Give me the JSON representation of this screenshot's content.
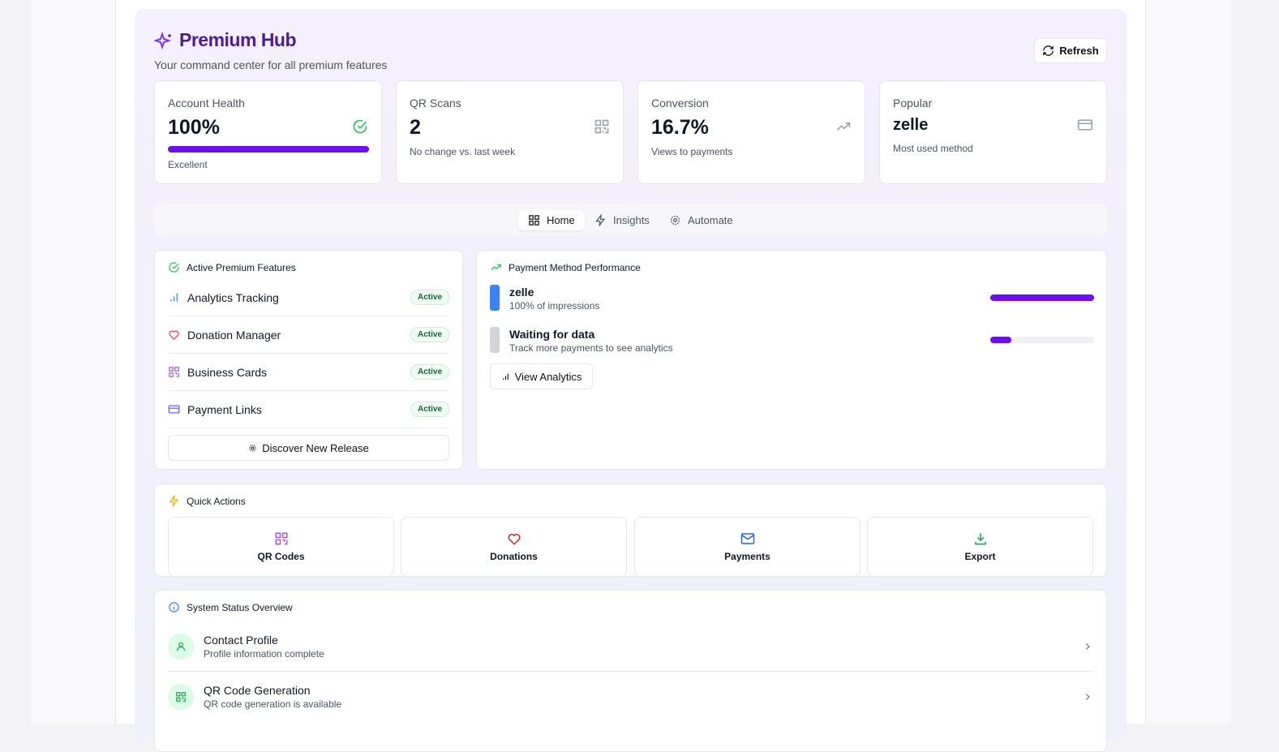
{
  "header": {
    "title": "Premium Hub",
    "subtitle": "Your command center for all premium features",
    "refresh": "Refresh"
  },
  "stats": [
    {
      "label": "Account Health",
      "value": "100%",
      "note": "Excellent",
      "progress": 100
    },
    {
      "label": "QR Scans",
      "value": "2",
      "note": "No change vs. last week"
    },
    {
      "label": "Conversion",
      "value": "16.7%",
      "note": "Views to payments"
    },
    {
      "label": "Popular",
      "value": "zelle",
      "note": "Most used method"
    }
  ],
  "tabs": [
    "Home",
    "Insights",
    "Automate"
  ],
  "features": {
    "title": "Active Premium Features",
    "items": [
      {
        "name": "Analytics Tracking",
        "status": "Active"
      },
      {
        "name": "Donation Manager",
        "status": "Active"
      },
      {
        "name": "Business Cards",
        "status": "Active"
      },
      {
        "name": "Payment Links",
        "status": "Active"
      }
    ],
    "button": "Discover New Release"
  },
  "payment": {
    "title": "Payment Method Performance",
    "methods": [
      {
        "name": "zelle",
        "detail": "100% of impressions",
        "bar": 100
      },
      {
        "name": "Waiting for data",
        "detail": "Track more payments to see analytics",
        "bar": 20
      }
    ],
    "button": "View Analytics"
  },
  "quick_actions": {
    "title": "Quick Actions",
    "items": [
      "QR Codes",
      "Donations",
      "Payments",
      "Export"
    ]
  },
  "system_status": {
    "title": "System Status Overview",
    "items": [
      {
        "name": "Contact Profile",
        "detail": "Profile information complete"
      },
      {
        "name": "QR Code Generation",
        "detail": "QR code generation is available"
      }
    ]
  }
}
